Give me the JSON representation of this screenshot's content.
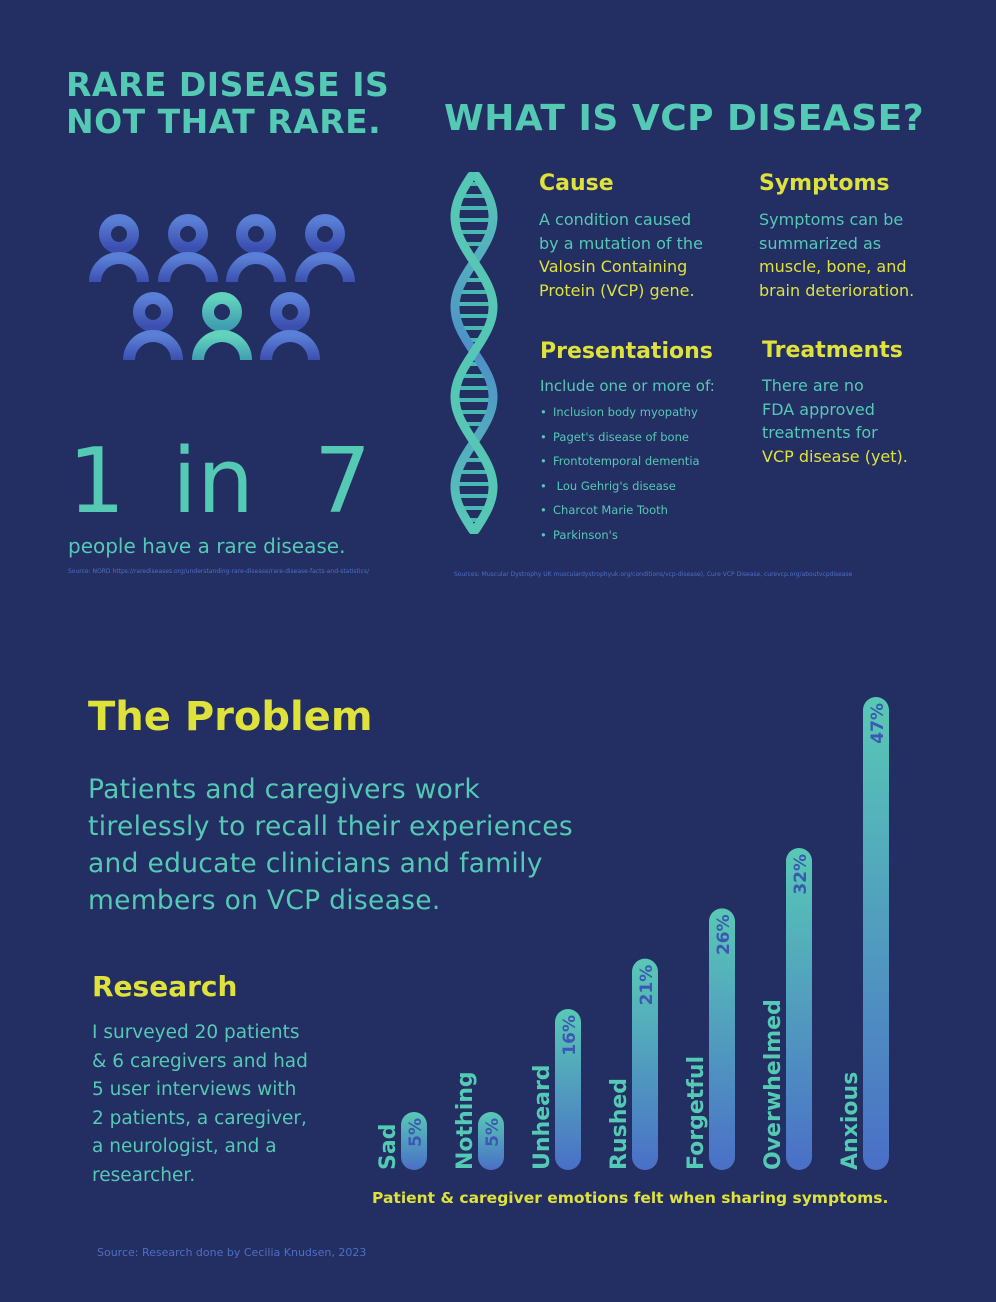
{
  "rare": {
    "headline": "RARE DISEASE IS NOT THAT RARE.",
    "stat_one": "1",
    "stat_in": "in",
    "stat_seven": "7",
    "stat_label": "people have a rare disease.",
    "source": "Source: NORD https://rarediseases.org/understanding-rare-disease/rare-disease-facts-and-statistics/",
    "icon": "person-icon",
    "highlight_person": 6
  },
  "vcp": {
    "headline": "WHAT IS VCP DISEASE?",
    "icon": "dna-helix-icon",
    "cause": {
      "title": "Cause",
      "line1": "A condition caused",
      "line2": "by a mutation of the",
      "line3": "Valosin Containing",
      "line4": "Protein (VCP) gene."
    },
    "symptoms": {
      "title": "Symptoms",
      "line1": "Symptoms can be",
      "line2": "summarized as",
      "line3": "muscle, bone, and",
      "line4": "brain deterioration."
    },
    "presentations": {
      "title": "Presentations",
      "intro": "Include one or more of:",
      "items": [
        "Inclusion body myopathy",
        "Paget's disease of bone",
        "Frontotemporal dementia",
        " Lou Gehrig's disease",
        "Charcot Marie Tooth",
        "Parkinson's"
      ]
    },
    "treatments": {
      "title": "Treatments",
      "line1": "There are no",
      "line2": "FDA approved",
      "line3": "treatments for",
      "line4": "VCP disease (yet)."
    },
    "source": "Sources: Muscular Dystrophy UK musculardystrophyuk.org/conditions/vcp-disease),  Cure VCP Disease, curevcp.org/aboutvcpdisease"
  },
  "problem": {
    "title": "The Problem",
    "line1": "Patients and caregivers work",
    "line2": "tirelessly to recall their experiences",
    "line3": "and educate clinicians and family",
    "line4": "members on VCP disease."
  },
  "research": {
    "title": "Research",
    "line1": "I surveyed 20 patients",
    "line2": "& 6 caregivers and had",
    "line3": "5 user interviews with",
    "line4": "2 patients, a caregiver,",
    "line5": "a neurologist, and a",
    "line6": "researcher."
  },
  "chart_data": {
    "type": "bar",
    "categories": [
      "Sad",
      "Nothing",
      "Unheard",
      "Rushed",
      "Forgetful",
      "Overwhelmed",
      "Anxious"
    ],
    "values": [
      5,
      5,
      16,
      21,
      26,
      32,
      47
    ],
    "value_labels": [
      "5%",
      "5%",
      "16%",
      "21%",
      "26%",
      "32%",
      "47%"
    ],
    "title": "Patient & caregiver emotions felt when sharing symptoms.",
    "xlabel": "",
    "ylabel": "",
    "ylim": [
      0,
      47
    ],
    "orientation": "vertical",
    "grid": false,
    "colors": {
      "bar_top": "#58c9b5",
      "bar_bottom": "#4a6fc7",
      "label": "#54c9b4",
      "value_text": "#3d58b0"
    }
  },
  "footer": {
    "source": "Source: Research done by Cecilia Knudsen, 2023"
  },
  "colors": {
    "background": "#232e62",
    "teal": "#54c9b4",
    "yellow": "#dfe23a",
    "blue": "#4a6fc7"
  }
}
